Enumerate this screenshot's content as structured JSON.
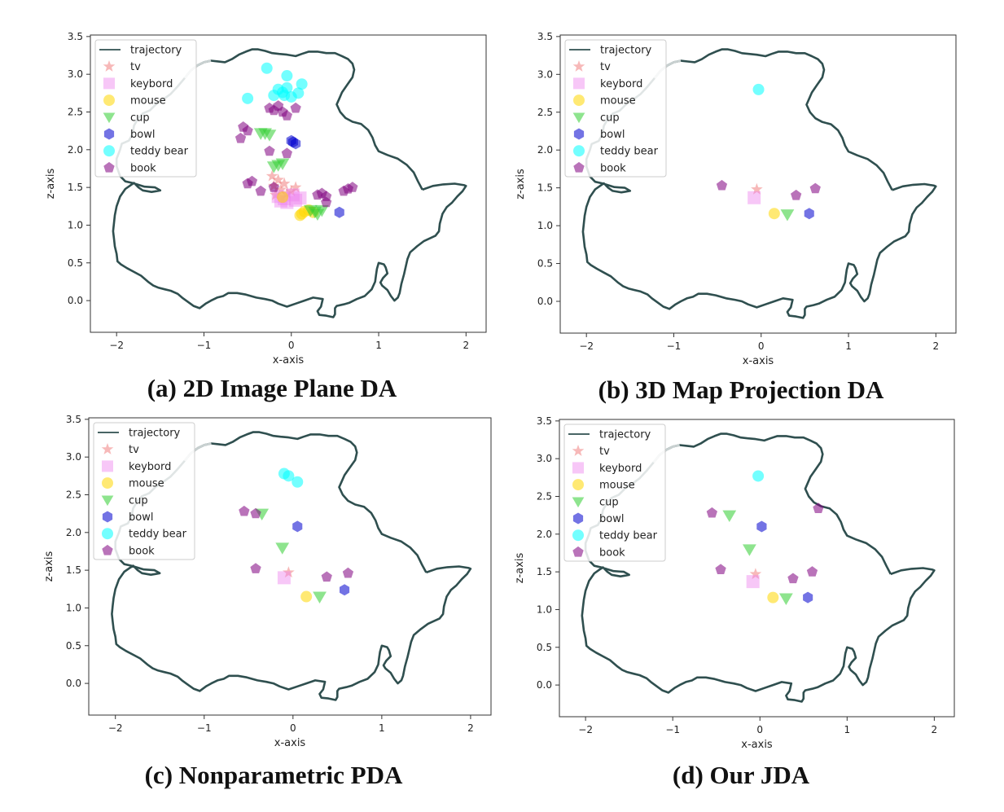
{
  "legend_labels": [
    "trajectory",
    "tv",
    "keybord",
    "mouse",
    "cup",
    "bowl",
    "teddy bear",
    "book"
  ],
  "colors": {
    "trajectory": "#2f4f4f",
    "tv": "#f08080",
    "keybord": "#ee82ee",
    "mouse": "#ffd700",
    "cup": "#32cd32",
    "bowl": "#0000cd",
    "teddy_bear": "#00ffff",
    "book": "#800080"
  },
  "captions": [
    "(a) 2D Image Plane DA",
    "(b) 3D Map Projection DA",
    "(c) Nonparametric PDA",
    "(d) Our JDA"
  ],
  "chart_data": [
    {
      "type": "scatter",
      "title": "",
      "xlabel": "x-axis",
      "ylabel": "z-axis",
      "xlim": [
        -2.3,
        2.23
      ],
      "ylim": [
        -0.42,
        3.52
      ],
      "xticks": [
        "−2",
        "−1",
        "0",
        "1",
        "2"
      ],
      "yticks": [
        "0.0",
        "0.5",
        "1.0",
        "1.5",
        "2.0",
        "2.5",
        "3.0",
        "3.5"
      ],
      "grid": false,
      "legend": "top-left",
      "series": [
        {
          "name": "tv",
          "marker": "star",
          "points": [
            [
              -0.22,
              1.65
            ],
            [
              -0.15,
              1.6
            ],
            [
              -0.08,
              1.55
            ],
            [
              -0.2,
              1.52
            ],
            [
              0.05,
              1.5
            ],
            [
              -0.12,
              1.47
            ],
            [
              -0.05,
              1.42
            ],
            [
              0.0,
              1.45
            ],
            [
              -0.18,
              1.4
            ]
          ]
        },
        {
          "name": "keybord",
          "marker": "square",
          "points": [
            [
              -0.15,
              1.38
            ],
            [
              -0.08,
              1.35
            ],
            [
              0.02,
              1.4
            ],
            [
              0.1,
              1.36
            ],
            [
              -0.05,
              1.3
            ],
            [
              -0.12,
              1.32
            ],
            [
              0.05,
              1.33
            ]
          ]
        },
        {
          "name": "mouse",
          "marker": "circle",
          "points": [
            [
              -0.1,
              1.37
            ],
            [
              0.12,
              1.15
            ],
            [
              0.15,
              1.18
            ],
            [
              0.2,
              1.2
            ],
            [
              0.1,
              1.13
            ],
            [
              0.25,
              1.17
            ]
          ]
        },
        {
          "name": "cup",
          "marker": "triangle",
          "points": [
            [
              -0.35,
              2.22
            ],
            [
              -0.3,
              2.22
            ],
            [
              -0.25,
              2.2
            ],
            [
              -0.2,
              1.78
            ],
            [
              -0.15,
              1.8
            ],
            [
              -0.1,
              1.82
            ],
            [
              0.22,
              1.2
            ],
            [
              0.27,
              1.18
            ],
            [
              0.3,
              1.15
            ],
            [
              0.35,
              1.2
            ]
          ]
        },
        {
          "name": "bowl",
          "marker": "hexagon",
          "points": [
            [
              0.0,
              2.12
            ],
            [
              0.05,
              2.08
            ],
            [
              0.02,
              2.1
            ],
            [
              0.55,
              1.17
            ]
          ]
        },
        {
          "name": "teddy bear",
          "marker": "circle",
          "points": [
            [
              -0.28,
              3.08
            ],
            [
              -0.5,
              2.68
            ],
            [
              -0.05,
              2.98
            ],
            [
              0.12,
              2.87
            ],
            [
              -0.15,
              2.8
            ],
            [
              -0.1,
              2.76
            ],
            [
              -0.2,
              2.72
            ],
            [
              -0.05,
              2.82
            ],
            [
              0.0,
              2.7
            ],
            [
              0.08,
              2.75
            ],
            [
              -0.08,
              2.72
            ]
          ]
        },
        {
          "name": "book",
          "marker": "pentagon",
          "points": [
            [
              -0.25,
              2.55
            ],
            [
              -0.15,
              2.58
            ],
            [
              -0.2,
              2.52
            ],
            [
              -0.1,
              2.5
            ],
            [
              0.05,
              2.55
            ],
            [
              -0.05,
              2.45
            ],
            [
              -0.55,
              2.3
            ],
            [
              -0.5,
              2.25
            ],
            [
              -0.58,
              2.15
            ],
            [
              -0.25,
              1.98
            ],
            [
              -0.05,
              1.95
            ],
            [
              -0.45,
              1.58
            ],
            [
              -0.5,
              1.55
            ],
            [
              -0.35,
              1.45
            ],
            [
              -0.2,
              1.5
            ],
            [
              0.3,
              1.4
            ],
            [
              0.35,
              1.42
            ],
            [
              0.4,
              1.38
            ],
            [
              0.6,
              1.45
            ],
            [
              0.65,
              1.48
            ],
            [
              0.7,
              1.5
            ],
            [
              0.4,
              1.3
            ]
          ]
        }
      ]
    },
    {
      "type": "scatter",
      "title": "",
      "xlabel": "x-axis",
      "ylabel": "z-axis",
      "xlim": [
        -2.3,
        2.23
      ],
      "ylim": [
        -0.42,
        3.52
      ],
      "xticks": [
        "−2",
        "−1",
        "0",
        "1",
        "2"
      ],
      "yticks": [
        "0.0",
        "0.5",
        "1.0",
        "1.5",
        "2.0",
        "2.5",
        "3.0",
        "3.5"
      ],
      "grid": false,
      "legend": "top-left",
      "series": [
        {
          "name": "tv",
          "marker": "star",
          "points": [
            [
              -0.05,
              1.48
            ]
          ]
        },
        {
          "name": "keybord",
          "marker": "square",
          "points": [
            [
              -0.08,
              1.37
            ]
          ]
        },
        {
          "name": "mouse",
          "marker": "circle",
          "points": [
            [
              0.15,
              1.16
            ]
          ]
        },
        {
          "name": "cup",
          "marker": "triangle",
          "points": [
            [
              0.3,
              1.15
            ]
          ]
        },
        {
          "name": "bowl",
          "marker": "hexagon",
          "points": [
            [
              0.55,
              1.16
            ]
          ]
        },
        {
          "name": "teddy bear",
          "marker": "circle",
          "points": [
            [
              -0.03,
              2.8
            ]
          ]
        },
        {
          "name": "book",
          "marker": "pentagon",
          "points": [
            [
              -0.45,
              1.53
            ],
            [
              0.4,
              1.4
            ],
            [
              0.62,
              1.49
            ]
          ]
        }
      ]
    },
    {
      "type": "scatter",
      "title": "",
      "xlabel": "x-axis",
      "ylabel": "z-axis",
      "xlim": [
        -2.3,
        2.23
      ],
      "ylim": [
        -0.42,
        3.52
      ],
      "xticks": [
        "−2",
        "−1",
        "0",
        "1",
        "2"
      ],
      "yticks": [
        "0.0",
        "0.5",
        "1.0",
        "1.5",
        "2.0",
        "2.5",
        "3.0",
        "3.5"
      ],
      "grid": false,
      "legend": "top-left",
      "series": [
        {
          "name": "tv",
          "marker": "star",
          "points": [
            [
              -0.05,
              1.47
            ]
          ]
        },
        {
          "name": "keybord",
          "marker": "square",
          "points": [
            [
              -0.1,
              1.4
            ]
          ]
        },
        {
          "name": "mouse",
          "marker": "circle",
          "points": [
            [
              0.15,
              1.15
            ]
          ]
        },
        {
          "name": "cup",
          "marker": "triangle",
          "points": [
            [
              -0.35,
              2.25
            ],
            [
              -0.12,
              1.8
            ],
            [
              0.3,
              1.15
            ]
          ]
        },
        {
          "name": "bowl",
          "marker": "hexagon",
          "points": [
            [
              0.05,
              2.08
            ],
            [
              0.58,
              1.24
            ]
          ]
        },
        {
          "name": "teddy bear",
          "marker": "circle",
          "points": [
            [
              -0.1,
              2.78
            ],
            [
              -0.05,
              2.75
            ],
            [
              0.05,
              2.67
            ]
          ]
        },
        {
          "name": "book",
          "marker": "pentagon",
          "points": [
            [
              -0.55,
              2.28
            ],
            [
              -0.42,
              2.25
            ],
            [
              -0.42,
              1.52
            ],
            [
              0.38,
              1.41
            ],
            [
              0.62,
              1.46
            ]
          ]
        }
      ]
    },
    {
      "type": "scatter",
      "title": "",
      "xlabel": "x-axis",
      "ylabel": "z-axis",
      "xlim": [
        -2.3,
        2.23
      ],
      "ylim": [
        -0.42,
        3.52
      ],
      "xticks": [
        "−2",
        "−1",
        "0",
        "1",
        "2"
      ],
      "yticks": [
        "0.0",
        "0.5",
        "1.0",
        "1.5",
        "2.0",
        "2.5",
        "3.0",
        "3.5"
      ],
      "grid": false,
      "legend": "top-left",
      "series": [
        {
          "name": "tv",
          "marker": "star",
          "points": [
            [
              -0.05,
              1.47
            ]
          ]
        },
        {
          "name": "keybord",
          "marker": "square",
          "points": [
            [
              -0.08,
              1.37
            ]
          ]
        },
        {
          "name": "mouse",
          "marker": "circle",
          "points": [
            [
              0.15,
              1.16
            ]
          ]
        },
        {
          "name": "cup",
          "marker": "triangle",
          "points": [
            [
              -0.35,
              2.25
            ],
            [
              -0.12,
              1.8
            ],
            [
              0.3,
              1.15
            ]
          ]
        },
        {
          "name": "bowl",
          "marker": "hexagon",
          "points": [
            [
              0.02,
              2.1
            ],
            [
              0.55,
              1.16
            ]
          ]
        },
        {
          "name": "teddy bear",
          "marker": "circle",
          "points": [
            [
              -0.02,
              2.77
            ]
          ]
        },
        {
          "name": "book",
          "marker": "pentagon",
          "points": [
            [
              -0.55,
              2.28
            ],
            [
              -0.45,
              1.53
            ],
            [
              0.38,
              1.41
            ],
            [
              0.6,
              1.5
            ],
            [
              0.67,
              2.34
            ]
          ]
        }
      ]
    }
  ]
}
